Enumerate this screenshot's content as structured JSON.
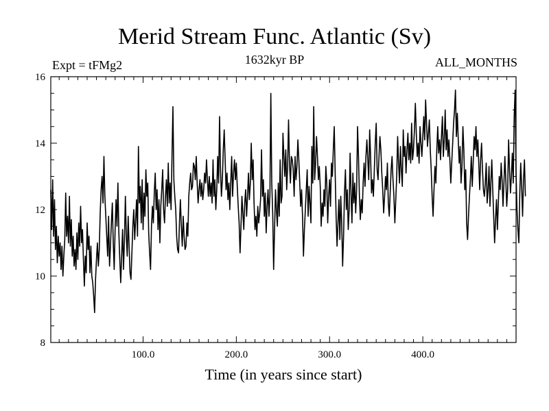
{
  "chart_data": {
    "type": "line",
    "title": "Merid Stream Func. Atlantic (Sv)",
    "subtitle_left": "Expt = tFMg2",
    "subtitle_center": "1632kyr BP",
    "subtitle_right": "ALL_MONTHS",
    "xlabel": "Time (in years since start)",
    "ylabel": "",
    "xlim": [
      1,
      500
    ],
    "ylim": [
      8,
      16
    ],
    "x_ticks": [
      100,
      200,
      300,
      400
    ],
    "x_tick_labels": [
      "100.0",
      "200.0",
      "300.0",
      "400.0"
    ],
    "y_ticks": [
      8,
      10,
      12,
      14,
      16
    ],
    "y_tick_labels": [
      "8",
      "10",
      "12",
      "14",
      "16"
    ],
    "grid": false,
    "series": [
      {
        "name": "Merid Stream Func. Atlantic",
        "x_start": 1,
        "x_step": 1,
        "values": [
          12.6,
          11.4,
          12.9,
          11.2,
          12.3,
          10.8,
          11.5,
          10.4,
          11.2,
          10.6,
          11.0,
          10.2,
          10.9,
          10.0,
          10.6,
          11.1,
          12.5,
          11.2,
          11.8,
          11.0,
          12.4,
          10.9,
          11.7,
          10.6,
          11.2,
          10.3,
          10.8,
          10.2,
          11.3,
          10.5,
          11.6,
          10.9,
          12.1,
          11.0,
          11.4,
          10.5,
          9.7,
          10.6,
          10.1,
          11.6,
          10.8,
          11.2,
          10.1,
          10.9,
          10.0,
          9.8,
          9.4,
          8.9,
          9.9,
          10.5,
          11.0,
          10.3,
          10.8,
          11.9,
          12.6,
          13.0,
          12.2,
          13.6,
          12.4,
          11.8,
          11.2,
          10.6,
          11.8,
          10.3,
          10.9,
          11.6,
          12.2,
          11.0,
          10.2,
          11.4,
          12.3,
          11.5,
          12.8,
          11.3,
          10.5,
          9.8,
          10.6,
          11.4,
          10.2,
          11.1,
          12.4,
          11.2,
          10.6,
          11.8,
          10.9,
          10.1,
          9.9,
          10.7,
          11.5,
          12.0,
          11.1,
          11.7,
          12.3,
          11.2,
          13.9,
          12.2,
          12.7,
          11.6,
          12.9,
          11.4,
          12.5,
          11.8,
          13.2,
          12.4,
          12.8,
          11.3,
          10.7,
          10.2,
          11.5,
          12.1,
          11.6,
          12.5,
          13.1,
          12.0,
          12.6,
          11.4,
          12.3,
          11.0,
          12.1,
          12.6,
          13.2,
          12.0,
          11.6,
          12.4,
          12.9,
          12.1,
          13.4,
          12.2,
          12.8,
          12.0,
          13.6,
          15.1,
          12.9,
          12.4,
          12.0,
          11.2,
          10.8,
          10.7,
          11.6,
          12.3,
          11.5,
          10.9,
          11.8,
          11.2,
          10.8,
          10.9,
          11.6,
          11.2,
          12.4,
          12.8,
          13.1,
          12.6,
          12.7,
          13.4,
          13.3,
          12.9,
          13.6,
          12.8,
          12.2,
          12.6,
          12.9,
          12.4,
          12.8,
          12.3,
          12.6,
          13.1,
          12.8,
          13.5,
          12.9,
          12.4,
          13.0,
          12.4,
          12.8,
          12.2,
          13.5,
          12.4,
          12.9,
          12.0,
          12.6,
          13.6,
          12.8,
          14.8,
          13.2,
          12.4,
          12.9,
          13.8,
          14.4,
          13.5,
          12.6,
          13.1,
          12.3,
          12.8,
          12.0,
          12.8,
          13.6,
          12.4,
          13.1,
          13.5,
          12.9,
          13.4,
          12.7,
          12.1,
          11.6,
          10.7,
          11.5,
          12.4,
          11.9,
          11.4,
          12.2,
          12.6,
          11.8,
          12.4,
          13.1,
          12.3,
          12.8,
          14.0,
          12.9,
          13.5,
          12.2,
          11.4,
          11.8,
          11.2,
          12.1,
          11.6,
          11.9,
          12.3,
          13.8,
          12.4,
          12.9,
          11.8,
          12.5,
          11.3,
          12.1,
          12.6,
          11.8,
          12.4,
          15.5,
          12.8,
          11.9,
          10.2,
          11.4,
          12.6,
          12.0,
          11.5,
          12.8,
          11.8,
          13.5,
          12.2,
          12.4,
          14.3,
          13.6,
          13.0,
          13.8,
          12.6,
          13.3,
          14.7,
          13.4,
          12.8,
          13.6,
          13.5,
          13.2,
          12.4,
          13.6,
          12.9,
          13.3,
          14.1,
          13.5,
          12.8,
          12.1,
          12.6,
          11.8,
          10.6,
          11.4,
          12.0,
          12.6,
          13.2,
          11.8,
          12.7,
          12.2,
          11.6,
          13.9,
          12.8,
          15.1,
          12.9,
          13.4,
          14.2,
          13.6,
          12.9,
          13.3,
          12.7,
          11.5,
          12.2,
          11.8,
          12.6,
          12.1,
          13.3,
          12.8,
          11.6,
          12.4,
          12.9,
          12.1,
          13.4,
          13.0,
          13.8,
          14.5,
          13.1,
          11.8,
          10.9,
          11.6,
          12.3,
          11.1,
          12.4,
          11.6,
          10.3,
          11.2,
          12.5,
          13.2,
          12.0,
          12.6,
          11.4,
          12.0,
          13.7,
          12.5,
          11.6,
          13.1,
          12.2,
          12.8,
          11.9,
          12.6,
          14.5,
          13.6,
          12.4,
          11.7,
          12.3,
          11.9,
          12.8,
          13.4,
          12.7,
          13.6,
          14.1,
          13.5,
          12.9,
          14.4,
          13.6,
          12.5,
          12.9,
          12.4,
          13.2,
          14.0,
          14.6,
          13.2,
          12.9,
          13.6,
          14.2,
          13.8,
          13.1,
          12.6,
          11.9,
          12.4,
          13.0,
          12.6,
          13.4,
          12.2,
          11.8,
          12.5,
          13.2,
          13.6,
          12.9,
          12.4,
          11.6,
          12.3,
          13.0,
          14.2,
          13.4,
          12.8,
          13.9,
          13.2,
          12.7,
          14.4,
          13.6,
          13.9,
          13.1,
          13.8,
          14.3,
          13.5,
          14.0,
          13.4,
          14.6,
          13.5,
          13.8,
          14.4,
          15.2,
          14.3,
          13.6,
          14.0,
          13.4,
          14.5,
          14.0,
          13.6,
          14.2,
          14.8,
          14.1,
          15.3,
          14.6,
          13.9,
          14.3,
          14.7,
          13.8,
          13.2,
          12.4,
          11.8,
          12.6,
          13.3,
          12.8,
          13.8,
          14.5,
          13.7,
          14.1,
          13.5,
          14.2,
          14.8,
          13.6,
          14.1,
          15.0,
          13.8,
          14.4,
          13.6,
          14.1,
          13.5,
          12.8,
          13.4,
          14.0,
          14.6,
          15.0,
          15.6,
          14.2,
          14.9,
          14.1,
          13.4,
          13.9,
          12.8,
          13.3,
          14.5,
          13.8,
          12.6,
          13.2,
          11.6,
          11.1,
          11.8,
          12.4,
          12.9,
          13.6,
          12.7,
          13.4,
          14.2,
          13.8,
          14.5,
          13.6,
          14.1,
          13.4,
          12.6,
          13.5,
          14.0,
          13.2,
          12.6,
          12.4,
          12.8,
          13.4,
          12.2,
          12.6,
          13.3,
          12.1,
          12.8,
          13.5,
          12.6,
          11.8,
          11.0,
          11.7,
          12.3,
          11.4,
          12.2,
          13.0,
          12.6,
          13.4,
          12.9,
          12.1,
          12.8,
          13.6,
          12.9,
          12.1,
          12.6,
          14.1,
          13.2,
          12.5,
          13.0,
          13.7,
          12.8,
          14.8,
          15.6,
          13.1,
          12.0,
          11.4,
          11.0,
          12.5,
          13.4,
          12.7,
          11.8,
          12.9,
          13.5,
          12.4
        ]
      }
    ]
  }
}
